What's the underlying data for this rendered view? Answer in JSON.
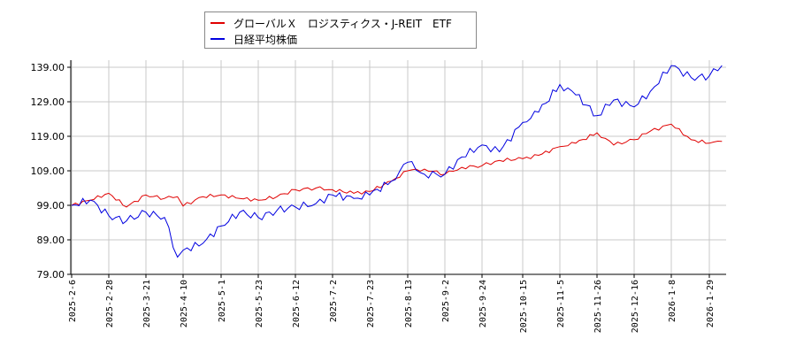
{
  "legend": {
    "items": [
      {
        "label": "グローバルＸ　ロジスティクス・J-REIT　ETF",
        "color": "#e00000"
      },
      {
        "label": "日経平均株価",
        "color": "#0000e0"
      }
    ]
  },
  "chart_data": {
    "type": "line",
    "title": "",
    "xlabel": "",
    "ylabel": "",
    "ylim": [
      79,
      141
    ],
    "grid": true,
    "legend_position": "top-center",
    "y_ticks": [
      "79.00",
      "89.00",
      "99.00",
      "109.00",
      "119.00",
      "129.00",
      "139.00"
    ],
    "x_ticks": [
      "2025-2-6",
      "2025-2-28",
      "2025-3-21",
      "2025-4-10",
      "2025-5-1",
      "2025-5-23",
      "2025-6-12",
      "2025-7-2",
      "2025-7-23",
      "2025-8-13",
      "2025-9-2",
      "2025-9-24",
      "2025-10-15",
      "2025-11-5",
      "2025-11-26",
      "2025-12-16",
      "2026-1-8",
      "2026-1-29"
    ],
    "x": [
      "2025-2-6",
      "2025-2-17",
      "2025-2-28",
      "2025-3-10",
      "2025-3-21",
      "2025-3-31",
      "2025-4-7",
      "2025-4-10",
      "2025-4-21",
      "2025-5-1",
      "2025-5-12",
      "2025-5-23",
      "2025-6-2",
      "2025-6-12",
      "2025-6-23",
      "2025-7-2",
      "2025-7-14",
      "2025-7-23",
      "2025-8-4",
      "2025-8-13",
      "2025-8-22",
      "2025-9-2",
      "2025-9-12",
      "2025-9-24",
      "2025-10-3",
      "2025-10-15",
      "2025-10-24",
      "2025-11-5",
      "2025-11-14",
      "2025-11-26",
      "2025-12-5",
      "2025-12-16",
      "2025-12-26",
      "2026-1-8",
      "2026-1-19",
      "2026-1-29",
      "2026-2-5"
    ],
    "series": [
      {
        "name": "グローバルＸ　ロジスティクス・J-REIT　ETF",
        "color": "#e00000",
        "values": [
          99.0,
          100.5,
          102.5,
          98.5,
          102.0,
          101.0,
          101.5,
          98.8,
          101.5,
          102.0,
          101.0,
          100.5,
          101.5,
          103.5,
          104.0,
          103.5,
          102.5,
          103.0,
          106.0,
          109.0,
          109.5,
          108.0,
          110.0,
          110.5,
          112.0,
          112.5,
          113.5,
          116.0,
          117.0,
          120.0,
          116.5,
          118.0,
          120.5,
          122.5,
          118.0,
          117.0,
          117.5
        ]
      },
      {
        "name": "日経平均株価",
        "color": "#0000e0",
        "values": [
          99.0,
          100.5,
          96.0,
          94.5,
          97.0,
          95.5,
          84.0,
          86.0,
          88.0,
          93.0,
          97.0,
          95.5,
          97.5,
          98.5,
          99.5,
          102.0,
          101.0,
          102.0,
          106.0,
          111.5,
          108.0,
          108.0,
          113.0,
          116.5,
          114.5,
          123.0,
          126.0,
          134.0,
          131.0,
          125.0,
          129.5,
          127.5,
          132.0,
          139.5,
          136.0,
          136.5,
          139.5
        ]
      }
    ]
  }
}
